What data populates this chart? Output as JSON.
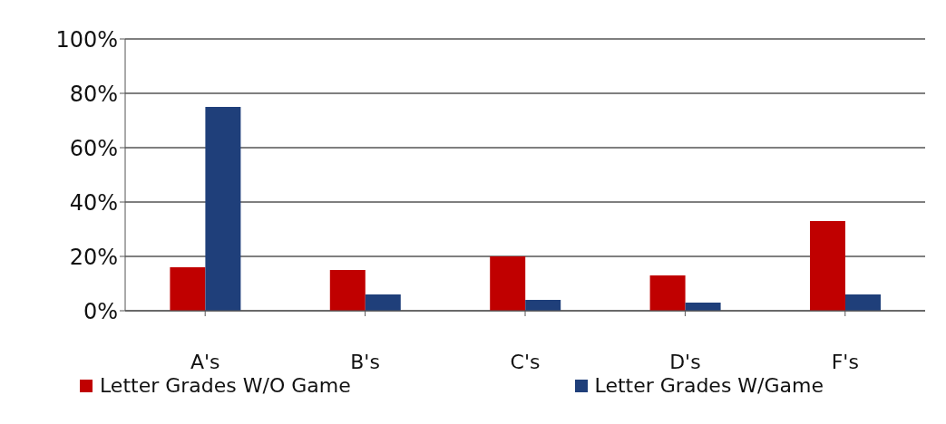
{
  "chart_data": {
    "type": "bar",
    "categories": [
      "A's",
      "B's",
      "C's",
      "D's",
      "F's"
    ],
    "series": [
      {
        "name": "Letter Grades W/O Game",
        "color": "#c00000",
        "values": [
          16,
          15,
          20,
          13,
          33
        ]
      },
      {
        "name": "Letter Grades W/Game",
        "color": "#1f3f7a",
        "values": [
          75,
          6,
          4,
          3,
          6
        ]
      }
    ],
    "ylim": [
      0,
      100
    ],
    "yticks": [
      {
        "value": 0,
        "label": "0%"
      },
      {
        "value": 20,
        "label": "20%"
      },
      {
        "value": 40,
        "label": "40%"
      },
      {
        "value": 60,
        "label": "60%"
      },
      {
        "value": 80,
        "label": "80%"
      },
      {
        "value": 100,
        "label": "100%"
      }
    ],
    "grid": "y",
    "legend": "bottom"
  }
}
